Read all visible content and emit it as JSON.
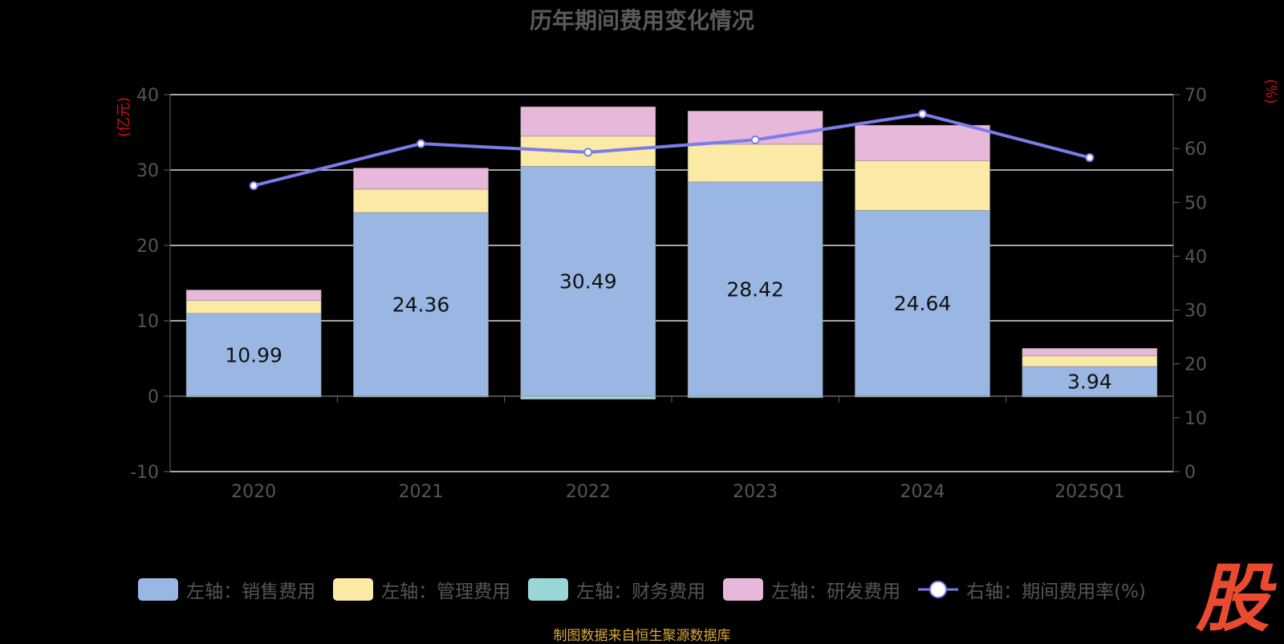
{
  "chart_data": {
    "type": "bar",
    "title": "历年期间费用变化情况",
    "categories": [
      "2020",
      "2021",
      "2022",
      "2023",
      "2024",
      "2025Q1"
    ],
    "y_left": {
      "unit_label": "(亿元)",
      "min": -10,
      "max": 40,
      "ticks": [
        -10,
        0,
        10,
        20,
        30,
        40
      ]
    },
    "y_right": {
      "unit_label": "(%)",
      "min": 0,
      "max": 70,
      "ticks": [
        0,
        10,
        20,
        30,
        40,
        50,
        60,
        70
      ]
    },
    "stacked": true,
    "grid": true,
    "legend_position": "bottom",
    "series": [
      {
        "name": "左轴：销售费用",
        "type": "bar",
        "axis": "left",
        "color": "#9ab7e3",
        "values": [
          10.99,
          24.36,
          30.49,
          28.42,
          24.64,
          3.94
        ],
        "labels": [
          "10.99",
          "24.36",
          "30.49",
          "28.42",
          "24.64",
          "3.94"
        ]
      },
      {
        "name": "左轴：管理费用",
        "type": "bar",
        "axis": "left",
        "color": "#fbe9a6",
        "values": [
          1.7,
          3.1,
          4.0,
          5.0,
          6.6,
          1.4
        ]
      },
      {
        "name": "左轴：财务费用",
        "type": "bar",
        "axis": "left",
        "color": "#9ad6d6",
        "values": [
          -0.1,
          -0.1,
          -0.4,
          -0.2,
          -0.1,
          -0.05
        ]
      },
      {
        "name": "左轴：研发费用",
        "type": "bar",
        "axis": "left",
        "color": "#e8b8da",
        "values": [
          1.4,
          2.8,
          3.9,
          4.4,
          4.7,
          1.0
        ]
      },
      {
        "name": "右轴：期间费用率(%)",
        "type": "line",
        "axis": "right",
        "color": "#7c7ce8",
        "values": [
          53.1,
          60.9,
          59.3,
          61.6,
          66.4,
          58.3
        ]
      }
    ]
  },
  "source_text": "制图数据来自恒生聚源数据库",
  "logo_text": "股"
}
